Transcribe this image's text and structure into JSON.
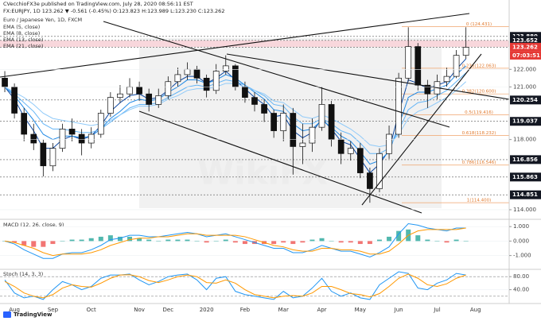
{
  "header": [
    "CVecchioFX3e published on TradingView.com, July 28, 2020 08:56:11 EST",
    "FX:EURJPY, 1D 123.262 ▼ -0.561 (-0.45%) O:123.823 H:123.989 L:123.230 C:123.262"
  ],
  "watermark": "WikiFX",
  "logo": "TradingView",
  "chart_data": [
    {
      "type": "candlestick",
      "title": "Euro / Japanese Yen, 1D, FXCM",
      "categories": [
        null,
        "Aug",
        null,
        null,
        null,
        "Sep",
        null,
        null,
        null,
        "Oct",
        null,
        null,
        null,
        null,
        "Nov",
        null,
        null,
        "Dec",
        null,
        null,
        null,
        "2020",
        null,
        null,
        null,
        "Feb",
        null,
        null,
        null,
        "Mar",
        null,
        null,
        null,
        "Apr",
        null,
        null,
        null,
        "May",
        null,
        null,
        null,
        "Jun",
        null,
        null,
        null,
        "Jul",
        null,
        null,
        null,
        "Aug",
        null,
        null,
        null
      ],
      "open": [
        121.5,
        121.0,
        119.5,
        118.3,
        117.8,
        116.5,
        117.5,
        118.6,
        118.3,
        117.8,
        118.3,
        119.5,
        120.4,
        120.6,
        121.0,
        120.6,
        120.0,
        120.5,
        121.3,
        121.7,
        122.0,
        121.5,
        120.8,
        121.9,
        122.2,
        121.0,
        120.4,
        120.0,
        119.5,
        118.5,
        119.5,
        117.6,
        117.8,
        118.7,
        120.0,
        118.0,
        117.2,
        117.5,
        116.1,
        115.2,
        117.2,
        118.3,
        121.5,
        123.3,
        121.1,
        120.6,
        121.3,
        121.6,
        122.8,
        null,
        null,
        null,
        null
      ],
      "high": [
        121.9,
        121.2,
        119.8,
        118.9,
        118.0,
        117.8,
        118.9,
        119.2,
        118.6,
        118.7,
        119.7,
        120.7,
        121.1,
        121.5,
        121.3,
        120.9,
        120.9,
        121.6,
        122.1,
        122.4,
        122.2,
        121.7,
        122.3,
        122.8,
        122.3,
        121.3,
        120.7,
        120.3,
        119.7,
        120.0,
        119.8,
        118.9,
        119.2,
        121.0,
        120.2,
        118.4,
        117.9,
        117.8,
        116.4,
        117.5,
        118.8,
        121.8,
        124.4,
        123.5,
        121.4,
        121.7,
        122.1,
        123.1,
        124.4,
        null,
        null,
        null,
        null
      ],
      "low": [
        120.7,
        119.2,
        117.9,
        117.4,
        115.9,
        116.2,
        117.3,
        117.9,
        117.1,
        117.5,
        118.1,
        119.3,
        120.1,
        120.4,
        120.2,
        119.6,
        119.8,
        120.3,
        121.0,
        121.4,
        121.2,
        120.4,
        120.6,
        121.7,
        120.8,
        120.1,
        119.6,
        119.0,
        118.1,
        117.9,
        116.0,
        116.6,
        117.3,
        118.5,
        117.6,
        116.6,
        116.8,
        115.8,
        114.4,
        115.0,
        116.9,
        118.1,
        121.3,
        120.8,
        119.8,
        120.3,
        121.0,
        121.5,
        122.6,
        null,
        null,
        null,
        null
      ],
      "close": [
        121.0,
        119.5,
        118.3,
        117.8,
        116.5,
        117.5,
        118.6,
        118.3,
        117.8,
        118.3,
        119.5,
        120.4,
        120.6,
        121.0,
        120.6,
        120.0,
        120.5,
        121.3,
        121.7,
        122.0,
        121.5,
        120.8,
        121.9,
        122.2,
        121.0,
        120.4,
        120.0,
        119.5,
        118.5,
        119.5,
        117.6,
        117.8,
        118.7,
        120.0,
        118.0,
        117.2,
        117.5,
        116.1,
        115.2,
        117.2,
        118.3,
        121.5,
        123.3,
        121.1,
        120.6,
        121.3,
        121.6,
        122.8,
        123.26,
        null,
        null,
        null,
        null
      ],
      "series": [
        {
          "name": "EMA (5, close)",
          "color": "#0d47a1",
          "values": [
            121.0,
            120.3,
            119.3,
            118.5,
            117.5,
            117.5,
            118.0,
            118.2,
            118.0,
            118.2,
            118.8,
            119.6,
            120.1,
            120.5,
            120.6,
            120.3,
            120.4,
            120.8,
            121.3,
            121.6,
            121.6,
            121.2,
            121.5,
            121.9,
            121.4,
            120.9,
            120.4,
            120.0,
            119.3,
            119.4,
            118.5,
            118.1,
            118.4,
            119.2,
            118.6,
            117.9,
            117.7,
            116.9,
            116.1,
            116.6,
            117.4,
            119.5,
            121.4,
            121.2,
            120.9,
            121.1,
            121.3,
            122.0,
            122.6,
            null,
            null,
            null,
            null
          ]
        },
        {
          "name": "EMA (8, close)",
          "color": "#1e88e5",
          "values": [
            121.0,
            120.5,
            119.8,
            119.1,
            118.3,
            118.0,
            118.2,
            118.2,
            118.1,
            118.2,
            118.6,
            119.2,
            119.6,
            120.1,
            120.3,
            120.2,
            120.3,
            120.7,
            121.0,
            121.4,
            121.4,
            121.2,
            121.4,
            121.7,
            121.5,
            121.1,
            120.7,
            120.3,
            119.7,
            119.6,
            118.9,
            118.5,
            118.6,
            119.1,
            118.7,
            118.2,
            117.9,
            117.3,
            116.6,
            116.8,
            117.3,
            118.8,
            120.4,
            120.7,
            120.7,
            120.9,
            121.1,
            121.7,
            122.2,
            null,
            null,
            null,
            null
          ]
        },
        {
          "name": "EMA (13, close)",
          "color": "#64b5f6",
          "values": [
            121.0,
            120.6,
            120.1,
            119.6,
            118.9,
            118.6,
            118.6,
            118.5,
            118.4,
            118.4,
            118.6,
            119.0,
            119.4,
            119.8,
            120.0,
            120.0,
            120.1,
            120.4,
            120.7,
            121.0,
            121.1,
            121.0,
            121.2,
            121.4,
            121.3,
            121.1,
            120.8,
            120.5,
            120.0,
            119.9,
            119.3,
            118.9,
            118.9,
            119.2,
            118.9,
            118.5,
            118.3,
            117.8,
            117.2,
            117.2,
            117.5,
            118.5,
            119.7,
            120.1,
            120.2,
            120.5,
            120.8,
            121.3,
            121.8,
            null,
            null,
            null,
            null
          ]
        },
        {
          "name": "EMA (21, close)",
          "color": "#90caf9",
          "values": [
            121.0,
            120.7,
            120.4,
            120.0,
            119.5,
            119.2,
            119.1,
            119.0,
            118.9,
            118.8,
            118.9,
            119.1,
            119.4,
            119.7,
            119.9,
            119.9,
            120.0,
            120.3,
            120.5,
            120.8,
            120.9,
            120.9,
            121.0,
            121.2,
            121.2,
            121.0,
            120.8,
            120.6,
            120.2,
            120.1,
            119.7,
            119.3,
            119.2,
            119.4,
            119.2,
            118.9,
            118.6,
            118.2,
            117.7,
            117.6,
            117.7,
            118.3,
            119.2,
            119.6,
            119.8,
            120.1,
            120.4,
            120.8,
            121.3,
            null,
            null,
            null,
            null
          ]
        }
      ],
      "ylim": [
        113.5,
        125.5
      ],
      "yticks": [
        {
          "value": 122,
          "label": "122.000"
        },
        {
          "value": 121,
          "label": "121.000"
        },
        {
          "value": 118,
          "label": "118.000"
        },
        {
          "value": 114,
          "label": "114.000"
        }
      ],
      "levels": [
        {
          "value": 123.88,
          "label": "123.880",
          "color": "#131722"
        },
        {
          "value": 123.652,
          "label": "123.652",
          "color": "#131722"
        },
        {
          "value": 123.262,
          "label": "123.262",
          "color": "#e53935"
        },
        {
          "value": 120.254,
          "label": "120.254",
          "color": "#131722"
        },
        {
          "value": 119.037,
          "label": "119.037",
          "color": "#131722"
        },
        {
          "value": 116.856,
          "label": "116.856",
          "color": "#131722"
        },
        {
          "value": 115.863,
          "label": "115.863",
          "color": "#131722"
        },
        {
          "value": 114.851,
          "label": "114.851",
          "color": "#131722"
        }
      ],
      "countdown": "07:03:51",
      "fib": [
        {
          "value": 124.431,
          "label": "0 (124.431)"
        },
        {
          "value": 122.063,
          "label": "0.236(122.063)"
        },
        {
          "value": 120.6,
          "label": "0.382(120.600)"
        },
        {
          "value": 119.416,
          "label": "0.5(119.416)"
        },
        {
          "value": 118.232,
          "label": "0.618(118.232)"
        },
        {
          "value": 116.546,
          "label": "0.786(116.546)"
        },
        {
          "value": 114.4,
          "label": "1(114.400)"
        }
      ]
    },
    {
      "type": "macd",
      "title": "MACD (12, 26, close, 9)",
      "ylim": [
        -1.9,
        1.45
      ],
      "yticks": [
        {
          "value": 1,
          "label": "1.000"
        },
        {
          "value": 0,
          "label": "0.000"
        },
        {
          "value": -1,
          "label": "-1.000"
        }
      ],
      "series": [
        {
          "name": "MACD",
          "color": "#2196f3",
          "values": [
            0,
            -0.2,
            -0.6,
            -0.9,
            -1.2,
            -1.2,
            -0.9,
            -0.8,
            -0.8,
            -0.6,
            -0.3,
            0.1,
            0.2,
            0.4,
            0.4,
            0.3,
            0.3,
            0.4,
            0.5,
            0.6,
            0.5,
            0.3,
            0.4,
            0.5,
            0.3,
            0.1,
            -0.1,
            -0.3,
            -0.5,
            -0.5,
            -0.8,
            -0.8,
            -0.6,
            -0.3,
            -0.5,
            -0.7,
            -0.7,
            -0.9,
            -1.1,
            -0.8,
            -0.4,
            0.5,
            1.2,
            1.1,
            0.9,
            0.8,
            0.7,
            0.9,
            0.9,
            null,
            null,
            null,
            null
          ]
        },
        {
          "name": "Signal",
          "color": "#ff9800",
          "values": [
            0,
            -0.1,
            -0.3,
            -0.5,
            -0.8,
            -1.0,
            -0.9,
            -0.9,
            -0.9,
            -0.8,
            -0.6,
            -0.3,
            -0.1,
            0.1,
            0.2,
            0.2,
            0.3,
            0.3,
            0.4,
            0.5,
            0.5,
            0.4,
            0.4,
            0.4,
            0.4,
            0.3,
            0.1,
            -0.1,
            -0.3,
            -0.4,
            -0.6,
            -0.7,
            -0.7,
            -0.5,
            -0.5,
            -0.6,
            -0.6,
            -0.7,
            -0.9,
            -0.9,
            -0.7,
            -0.2,
            0.4,
            0.7,
            0.8,
            0.8,
            0.8,
            0.8,
            0.9,
            null,
            null,
            null,
            null
          ]
        }
      ],
      "histogram": {
        "up_color": "#26a69a",
        "down_color": "#ef5350",
        "values": [
          0,
          -0.1,
          -0.3,
          -0.4,
          -0.4,
          -0.2,
          0,
          0.1,
          0.1,
          0.2,
          0.3,
          0.4,
          0.3,
          0.3,
          0.2,
          0.1,
          0,
          0.1,
          0.1,
          0.1,
          0,
          -0.1,
          0,
          0.1,
          -0.1,
          -0.2,
          -0.2,
          -0.2,
          -0.2,
          -0.1,
          -0.2,
          -0.1,
          0.1,
          0.2,
          0,
          -0.1,
          -0.1,
          -0.2,
          -0.2,
          0.1,
          0.3,
          0.7,
          0.8,
          0.4,
          0.1,
          0,
          -0.1,
          0.1,
          0,
          null,
          null,
          null,
          null
        ]
      }
    },
    {
      "type": "line",
      "title": "Stoch (14, 3, 3)",
      "ylim": [
        0,
        100
      ],
      "yticks": [
        {
          "value": 80,
          "label": "80.00"
        },
        {
          "value": 40,
          "label": "40.00"
        }
      ],
      "bands": [
        80,
        20
      ],
      "series": [
        {
          "name": "%K",
          "color": "#2196f3",
          "values": [
            70,
            30,
            15,
            20,
            10,
            40,
            65,
            55,
            40,
            50,
            75,
            85,
            85,
            88,
            70,
            55,
            65,
            80,
            85,
            88,
            70,
            40,
            75,
            80,
            35,
            25,
            20,
            15,
            10,
            35,
            15,
            20,
            45,
            75,
            35,
            20,
            30,
            15,
            10,
            55,
            75,
            95,
            90,
            45,
            40,
            60,
            70,
            90,
            85,
            null,
            null,
            null,
            null
          ]
        },
        {
          "name": "%D",
          "color": "#ff9800",
          "values": [
            65,
            50,
            30,
            20,
            15,
            25,
            45,
            55,
            50,
            48,
            60,
            75,
            85,
            86,
            80,
            68,
            62,
            70,
            80,
            85,
            80,
            62,
            60,
            70,
            60,
            40,
            25,
            20,
            15,
            20,
            22,
            20,
            30,
            50,
            50,
            40,
            28,
            25,
            18,
            28,
            50,
            75,
            88,
            75,
            55,
            50,
            58,
            75,
            85,
            null,
            null,
            null,
            null
          ]
        }
      ]
    }
  ]
}
